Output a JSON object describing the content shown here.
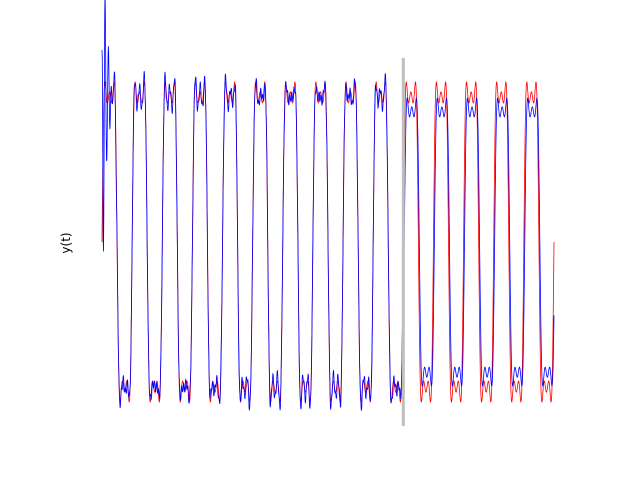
{
  "chart_data": {
    "type": "line",
    "title": "",
    "xlabel": "",
    "ylabel": "y(t)",
    "grid": false,
    "axes_visible": false,
    "xlim": [
      0,
      15
    ],
    "ylim": [
      -1.15,
      1.15
    ],
    "period": 1.0,
    "train_end_x": 10,
    "signal": {
      "components": [
        {
          "amplitude": 1.0,
          "frequency": 1.0
        },
        {
          "amplitude": 0.3,
          "frequency": 3.0
        },
        {
          "amplitude": 0.12,
          "frequency": 5.0
        }
      ]
    },
    "series": [
      {
        "role": "target",
        "color": "#ff0000"
      },
      {
        "role": "prediction",
        "color": "#0000ff"
      }
    ],
    "divider_color": "#bfbfbf"
  }
}
